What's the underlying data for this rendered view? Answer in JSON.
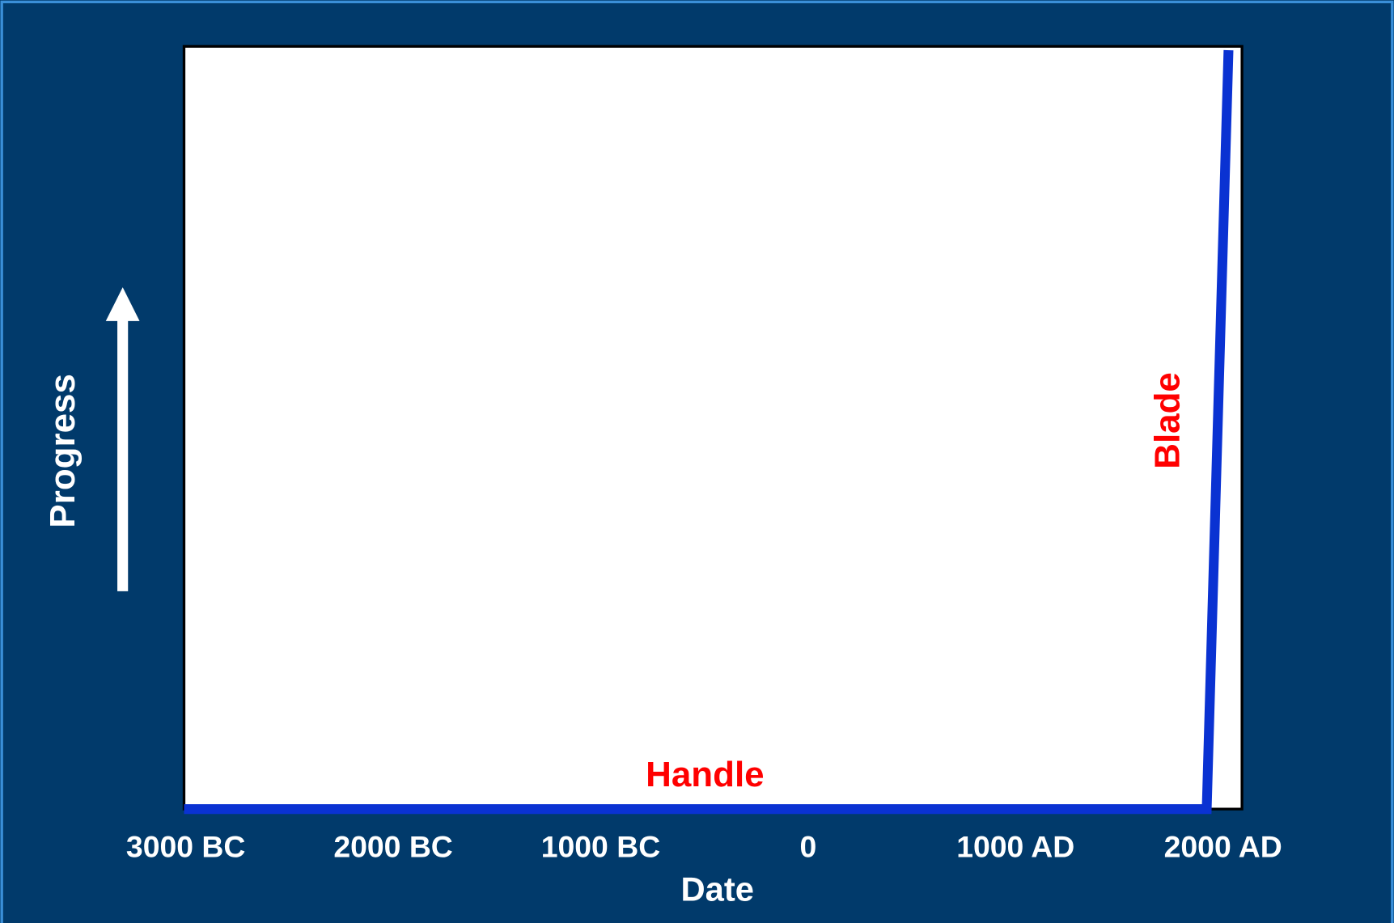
{
  "chart_data": {
    "type": "line",
    "xlabel": "Date",
    "ylabel": "Progress",
    "annotations": [
      "Handle",
      "Blade"
    ],
    "x": [
      -3000,
      1930,
      2035
    ],
    "series": [
      {
        "name": "Progress",
        "color": "#0a32d2",
        "values": [
          0,
          0,
          19.9
        ]
      }
    ],
    "xlim": [
      -3000,
      2100
    ],
    "xticks": [
      {
        "value": -3000,
        "label": "3000 BC"
      },
      {
        "value": -2000,
        "label": "2000 BC"
      },
      {
        "value": -1000,
        "label": "1000 BC"
      },
      0,
      {
        "value": 1000,
        "label": "1000 AD"
      },
      {
        "value": 2000,
        "label": "2000 AD"
      }
    ],
    "ylim": [
      0,
      20
    ],
    "yticks": [
      0,
      1,
      2,
      3,
      4,
      5,
      6,
      7,
      8,
      9,
      10,
      11,
      12,
      13,
      14,
      15,
      16,
      17,
      18,
      19,
      20
    ],
    "ytick_labels": false,
    "grid": true,
    "annotation_color": "#ff0000"
  }
}
